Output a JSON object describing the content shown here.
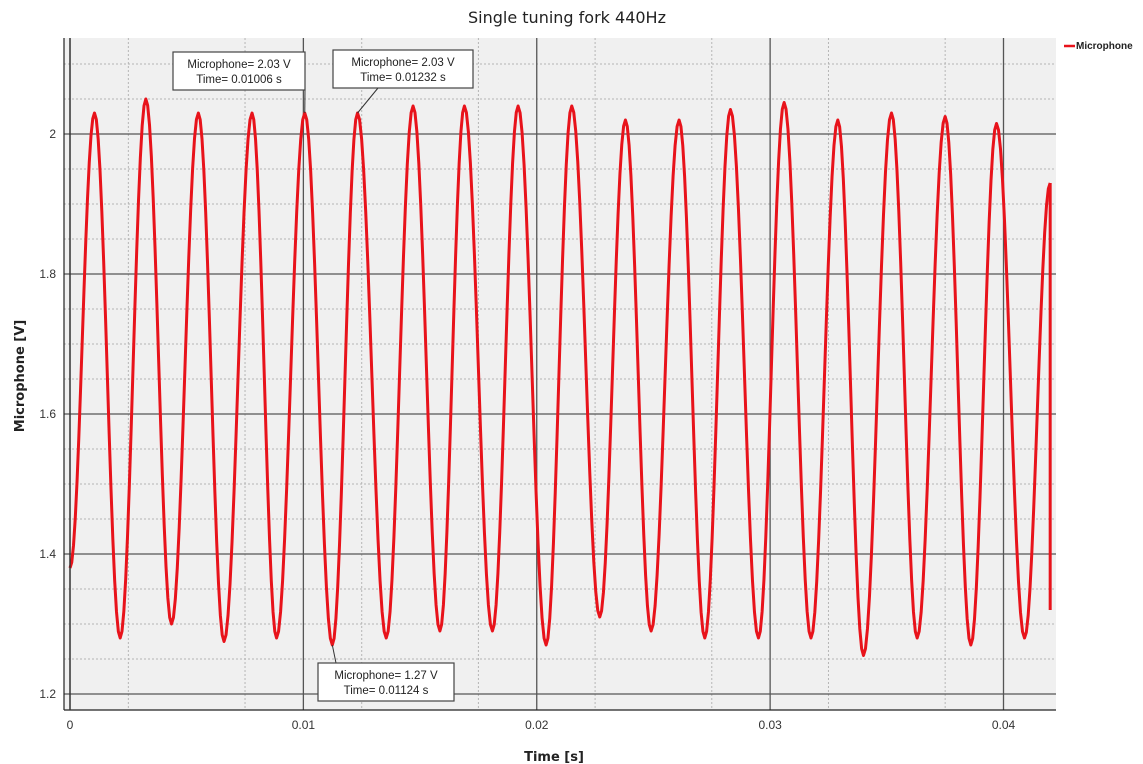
{
  "chart_data": {
    "type": "line",
    "title": "Single tuning fork 440Hz",
    "xlabel": "Time [s]",
    "ylabel": "Microphone [V]",
    "xlim": [
      0,
      0.042
    ],
    "ylim": [
      1.18,
      2.14
    ],
    "x_ticks": [
      "0",
      "0.01",
      "0.02",
      "0.03",
      "0.04"
    ],
    "x_tick_values": [
      0,
      0.01,
      0.02,
      0.03,
      0.04
    ],
    "y_ticks": [
      "1.2",
      "1.4",
      "1.6",
      "1.8",
      "2"
    ],
    "y_tick_values": [
      1.2,
      1.4,
      1.6,
      1.8,
      2.0
    ],
    "grid": true,
    "legend_position": "top-right",
    "series": [
      {
        "name": "Microphone",
        "color": "#e8131b",
        "start_value": 1.38,
        "end_value": 1.93,
        "peaks": [
          [
            0.00105,
            2.03
          ],
          [
            0.00325,
            2.05
          ],
          [
            0.0055,
            2.03
          ],
          [
            0.0078,
            2.03
          ],
          [
            0.01006,
            2.03
          ],
          [
            0.01232,
            2.03
          ],
          [
            0.0147,
            2.04
          ],
          [
            0.0169,
            2.04
          ],
          [
            0.0192,
            2.04
          ],
          [
            0.0215,
            2.04
          ],
          [
            0.0238,
            2.02
          ],
          [
            0.0261,
            2.02
          ],
          [
            0.0283,
            2.035
          ],
          [
            0.0306,
            2.045
          ],
          [
            0.0329,
            2.02
          ],
          [
            0.0352,
            2.03
          ],
          [
            0.0375,
            2.025
          ],
          [
            0.0397,
            2.015
          ]
        ],
        "troughs": [
          [
            0.00215,
            1.28
          ],
          [
            0.00435,
            1.3
          ],
          [
            0.0066,
            1.275
          ],
          [
            0.00885,
            1.28
          ],
          [
            0.01124,
            1.27
          ],
          [
            0.01355,
            1.28
          ],
          [
            0.01585,
            1.29
          ],
          [
            0.0181,
            1.29
          ],
          [
            0.0204,
            1.27
          ],
          [
            0.0227,
            1.31
          ],
          [
            0.0249,
            1.29
          ],
          [
            0.0272,
            1.28
          ],
          [
            0.0295,
            1.28
          ],
          [
            0.03175,
            1.28
          ],
          [
            0.034,
            1.255
          ],
          [
            0.0363,
            1.28
          ],
          [
            0.0386,
            1.27
          ],
          [
            0.0409,
            1.28
          ]
        ]
      }
    ],
    "annotations": [
      {
        "x": 0.01006,
        "y": 2.03,
        "line1": "Microphone= 2.03 V",
        "line2": "Time= 0.01006 s"
      },
      {
        "x": 0.01232,
        "y": 2.03,
        "line1": "Microphone= 2.03 V",
        "line2": "Time= 0.01232 s"
      },
      {
        "x": 0.01124,
        "y": 1.27,
        "line1": "Microphone= 1.27 V",
        "line2": "Time= 0.01124 s"
      }
    ]
  }
}
